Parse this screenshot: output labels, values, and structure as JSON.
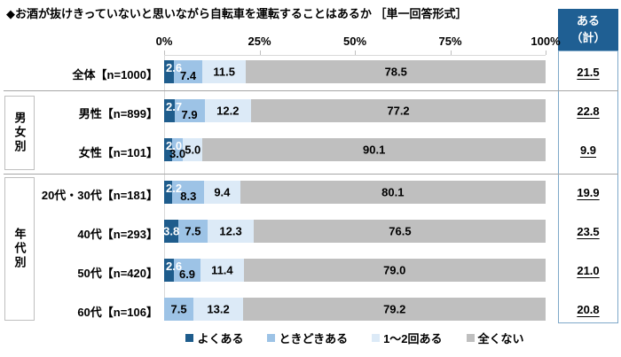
{
  "title": "◆お酒が抜けきっていないと思いながら自転車を運転することはあるか ［単一回答形式］",
  "summary": {
    "header_line1": "ある",
    "header_line2": "（計）",
    "totals": [
      "21.5",
      "22.8",
      "9.9",
      "19.9",
      "23.5",
      "21.0",
      "20.8"
    ]
  },
  "axis": {
    "ticks": [
      "0%",
      "25%",
      "50%",
      "75%",
      "100%"
    ]
  },
  "legend": {
    "items": [
      {
        "label": "よくある",
        "color": "#1E5C8C"
      },
      {
        "label": "ときどきある",
        "color": "#9DC3E6"
      },
      {
        "label": "1～2回ある",
        "color": "#DCEAF7"
      },
      {
        "label": "全くない",
        "color": "#BFBFBF"
      }
    ]
  },
  "groups": [
    {
      "label": "男女別",
      "rows": [
        1,
        2
      ]
    },
    {
      "label": "年代別",
      "rows": [
        3,
        4,
        5,
        6
      ]
    }
  ],
  "colors": {
    "seg_often": "#1E5C8C",
    "seg_sometimes": "#9DC3E6",
    "seg_once_twice": "#DCEAF7",
    "seg_never": "#BFBFBF",
    "header_bg": "#1F5F93",
    "summary_border": "#7FA8C9"
  },
  "chart_data": {
    "type": "bar",
    "stacked": true,
    "orientation": "horizontal",
    "title": "お酒が抜けきっていないと思いながら自転車を運転することはあるか（単一回答形式）",
    "categories": [
      "全体【n=1000】",
      "男性【n=899】",
      "女性【n=101】",
      "20代・30代【n=181】",
      "40代【n=293】",
      "50代【n=420】",
      "60代【n=106】"
    ],
    "series": [
      {
        "name": "よくある",
        "values": [
          "2.6",
          "2.7",
          "2.0",
          "2.2",
          "3.8",
          "2.6",
          "0.1"
        ]
      },
      {
        "name": "ときどきある",
        "values": [
          "7.4",
          "7.9",
          "3.0",
          "8.3",
          "7.5",
          "6.9",
          "7.5"
        ]
      },
      {
        "name": "1～2回ある",
        "values": [
          "11.5",
          "12.2",
          "5.0",
          "9.4",
          "12.3",
          "11.4",
          "13.2"
        ]
      },
      {
        "name": "全くない",
        "values": [
          "78.5",
          "77.2",
          "90.1",
          "80.1",
          "76.5",
          "79.0",
          "79.2"
        ]
      }
    ],
    "totals": [
      "21.5",
      "22.8",
      "9.9",
      "19.9",
      "23.5",
      "21.0",
      "20.8"
    ],
    "xlim": [
      0,
      100
    ],
    "x_ticks": [
      0,
      25,
      50,
      75,
      100
    ],
    "legend_position": "bottom"
  }
}
